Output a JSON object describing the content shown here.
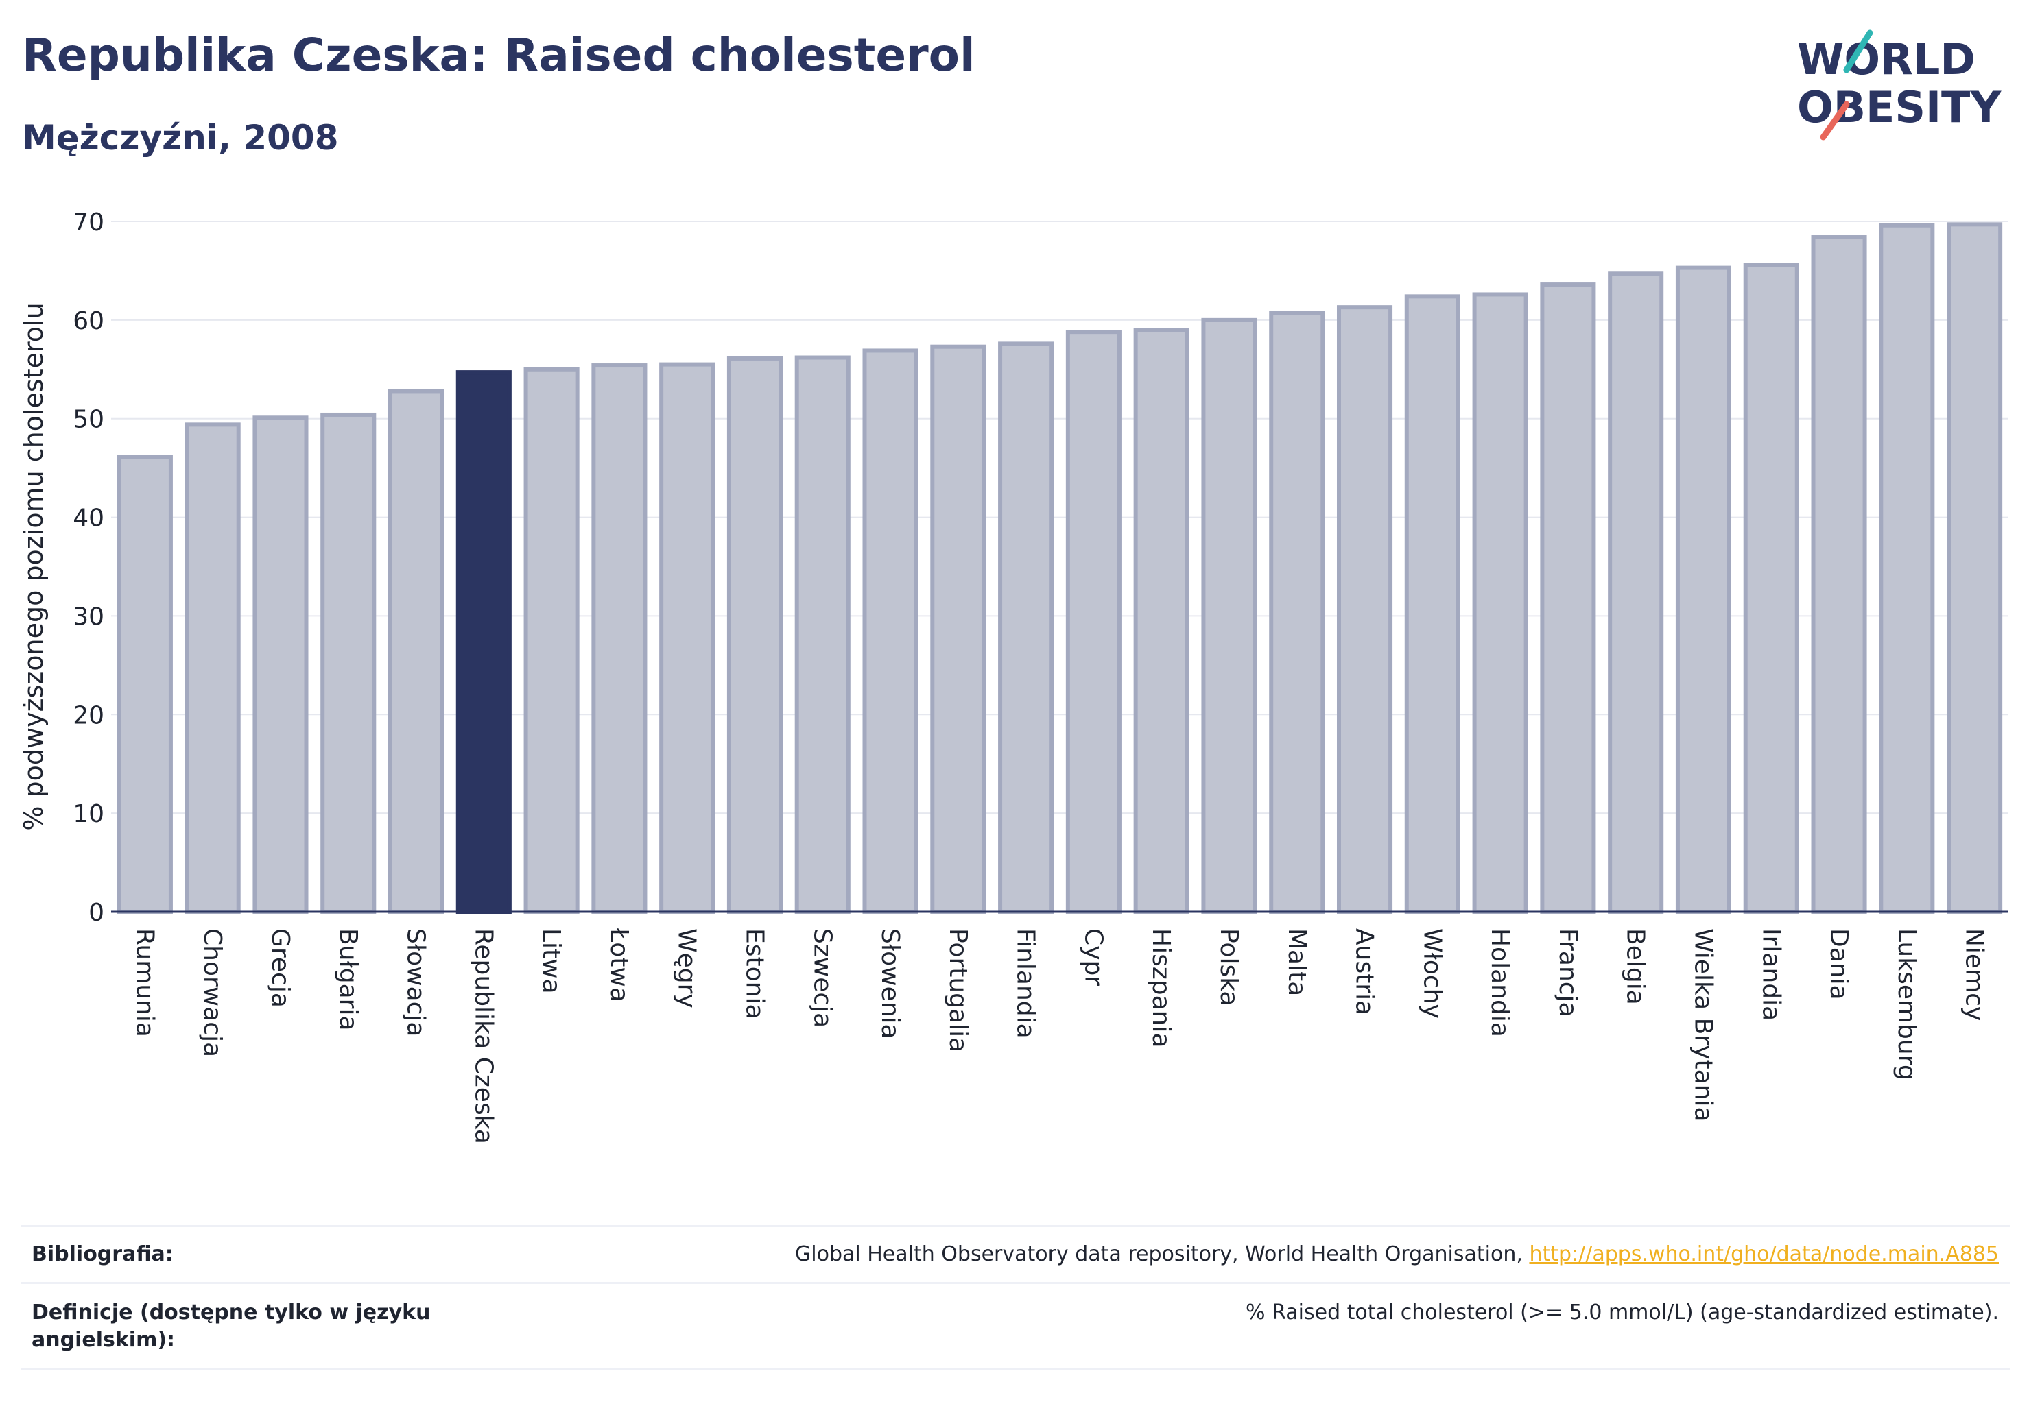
{
  "header": {
    "title": "Republika Czeska: Raised cholesterol",
    "subtitle": "Mężczyźni, 2008"
  },
  "logo": {
    "line1": "WORLD",
    "line2": "OBESITY",
    "accent_colors": [
      "#2fb6b4",
      "#e8665a"
    ]
  },
  "chart_data": {
    "type": "bar",
    "ylabel": "% podwyższonego poziomu cholesterolu",
    "ylim": [
      0,
      70
    ],
    "yticks": [
      0,
      10,
      20,
      30,
      40,
      50,
      60,
      70
    ],
    "grid": true,
    "highlight": "Republika Czeska",
    "colors": {
      "bar": "#c0c4d1",
      "bar_border": "#a3a9bf",
      "highlight": "#2b3561"
    },
    "categories": [
      "Rumunia",
      "Chorwacja",
      "Grecja",
      "Bułgaria",
      "Słowacja",
      "Republika Czeska",
      "Litwa",
      "Łotwa",
      "Węgry",
      "Estonia",
      "Szwecja",
      "Słowenia",
      "Portugalia",
      "Finlandia",
      "Cypr",
      "Hiszpania",
      "Polska",
      "Malta",
      "Austria",
      "Włochy",
      "Holandia",
      "Francja",
      "Belgia",
      "Wielka Brytania",
      "Irlandia",
      "Dania",
      "Luksemburg",
      "Niemcy"
    ],
    "values": [
      46.1,
      49.4,
      50.1,
      50.4,
      52.8,
      54.7,
      55.0,
      55.4,
      55.5,
      56.1,
      56.2,
      56.9,
      57.3,
      57.6,
      58.8,
      59.0,
      60.0,
      60.7,
      61.3,
      62.4,
      62.6,
      63.6,
      64.7,
      65.3,
      65.6,
      68.4,
      69.6,
      69.7
    ]
  },
  "footer": {
    "bibliography_label": "Bibliografia:",
    "bibliography_text": "Global Health Observatory data repository, World Health Organisation, ",
    "bibliography_link": "http://apps.who.int/gho/data/node.main.A885",
    "definition_label": "Definicje (dostępne tylko w języku angielskim):",
    "definition_text": "% Raised total cholesterol (>= 5.0 mmol/L) (age-standardized estimate)."
  }
}
